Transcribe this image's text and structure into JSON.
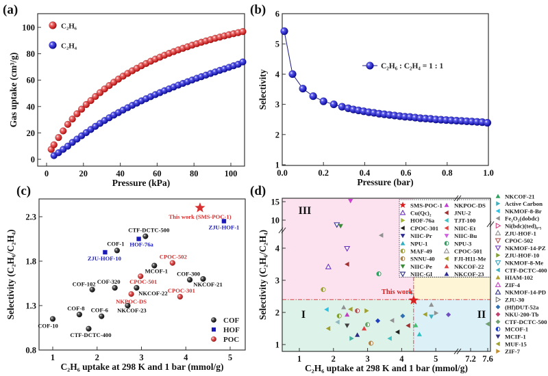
{
  "chart_data": [
    {
      "type": "scatter",
      "panel_label": "(a)",
      "xlabel": "Pressure (kPa)",
      "ylabel": "Gas uptake (cm³/g)",
      "xlim": [
        -5,
        110
      ],
      "ylim": [
        -5,
        108
      ],
      "xticks": [
        0,
        20,
        40,
        60,
        80,
        100
      ],
      "yticks": [
        0,
        20,
        40,
        60,
        80,
        100
      ],
      "legend_position": "top-left",
      "series": [
        {
          "name": "C₂H₆",
          "color": "#e02222",
          "x": [
            2.5,
            4,
            6.5,
            9,
            11.5,
            14,
            16.5,
            19,
            21.5,
            24,
            26.5,
            29,
            31.5,
            34,
            36.5,
            39,
            41.5,
            44,
            46.5,
            49,
            51.5,
            54,
            56.5,
            59,
            61.5,
            64,
            66.5,
            69,
            71.5,
            74,
            76.5,
            79,
            81.5,
            84,
            86.5,
            89,
            91.5,
            94,
            96.5,
            99,
            101.5,
            104,
            106.5
          ],
          "y": [
            7.5,
            11,
            16.5,
            21.5,
            26.5,
            30.5,
            34.5,
            38,
            41.5,
            44.5,
            47.6,
            50.5,
            53.3,
            55.9,
            58.4,
            60.8,
            63,
            65.1,
            67.1,
            69,
            70.9,
            72.6,
            74.3,
            75.9,
            77.4,
            78.9,
            80.3,
            81.6,
            82.9,
            84.1,
            85.3,
            86.5,
            87.6,
            88.7,
            89.7,
            90.7,
            91.7,
            92.6,
            93.5,
            94.4,
            95.2,
            96,
            96.8
          ]
        },
        {
          "name": "C₂H₄",
          "color": "#1a1ab8",
          "x": [
            4,
            6.5,
            9,
            11.5,
            14,
            16.5,
            19,
            21.5,
            24,
            26.5,
            29,
            31.5,
            34,
            36.5,
            39,
            41.5,
            44,
            46.5,
            49,
            51.5,
            54,
            56.5,
            59,
            61.5,
            64,
            66.5,
            69,
            71.5,
            74,
            76.5,
            79,
            81.5,
            84,
            86.5,
            89,
            91.5,
            94,
            96.5,
            99,
            101.5,
            104,
            106.5
          ],
          "y": [
            2.8,
            5,
            7.5,
            10,
            12.8,
            15.3,
            17.8,
            20.2,
            22.6,
            25,
            27.2,
            29.4,
            31.5,
            33.5,
            35.4,
            37.3,
            39.1,
            40.9,
            42.6,
            44.3,
            45.9,
            47.5,
            49,
            50.5,
            52,
            53.4,
            54.8,
            56.2,
            57.5,
            58.8,
            60.1,
            61.4,
            62.6,
            63.8,
            65,
            66.2,
            67.4,
            68.5,
            69.7,
            70.9,
            72,
            73.8
          ]
        }
      ]
    },
    {
      "type": "line",
      "panel_label": "(b)",
      "xlabel": "Pressure (bar)",
      "ylabel": "Selectivity",
      "xlim": [
        0,
        1
      ],
      "ylim": [
        1,
        6
      ],
      "xticks": [
        0.0,
        0.2,
        0.4,
        0.6,
        0.8,
        1.0
      ],
      "xtick_labels": [
        "0.0",
        "0.2",
        "0.4",
        "0.6",
        "0.8",
        "1.0"
      ],
      "yticks": [
        1,
        2,
        3,
        4,
        5,
        6
      ],
      "legend_position": "center-right",
      "series": [
        {
          "name": "C₂H₆ : C₂H₄ = 1 : 1",
          "color": "#1a1ab8",
          "x": [
            0.01,
            0.05,
            0.1,
            0.15,
            0.2,
            0.25,
            0.29,
            0.32,
            0.345,
            0.37,
            0.395,
            0.42,
            0.445,
            0.47,
            0.495,
            0.52,
            0.545,
            0.57,
            0.595,
            0.62,
            0.645,
            0.67,
            0.695,
            0.72,
            0.745,
            0.77,
            0.795,
            0.82,
            0.845,
            0.87,
            0.895,
            0.92,
            0.945,
            0.97,
            0.995
          ],
          "y": [
            5.42,
            4.0,
            3.52,
            3.27,
            3.1,
            3.0,
            2.92,
            2.87,
            2.83,
            2.8,
            2.77,
            2.74,
            2.72,
            2.69,
            2.67,
            2.65,
            2.63,
            2.61,
            2.59,
            2.58,
            2.56,
            2.54,
            2.53,
            2.52,
            2.5,
            2.49,
            2.48,
            2.47,
            2.46,
            2.45,
            2.44,
            2.43,
            2.42,
            2.41,
            2.39
          ]
        }
      ]
    },
    {
      "type": "scatter",
      "panel_label": "(c)",
      "xlabel": "C₂H₆ uptake at 298 K and 1 bar (mmol/g)",
      "ylabel": "Selectivity (C₂H₆/C₂H₄)",
      "xlim": [
        0.7,
        5.35
      ],
      "ylim": [
        0.8,
        2.5
      ],
      "xticks": [
        1,
        2,
        3,
        4,
        5
      ],
      "yticks": [
        0.8,
        1.3,
        1.8,
        2.3
      ],
      "legend_position": "bottom-right",
      "legend": [
        {
          "name": "COF",
          "color": "#111111",
          "marker": "sphere"
        },
        {
          "name": "HOF",
          "color": "#1a1ab8",
          "marker": "square"
        },
        {
          "name": "POC",
          "color": "#d83030",
          "marker": "sphere"
        }
      ],
      "highlight": {
        "label": "This work (SMS-POC-1)",
        "x": 4.32,
        "y": 2.4,
        "color": "#d83030"
      },
      "points": [
        {
          "label": "COF-10",
          "x": 1.0,
          "y": 1.15,
          "group": "COF"
        },
        {
          "label": "CTF-DCTC-400",
          "x": 1.81,
          "y": 1.04,
          "group": "COF"
        },
        {
          "label": "COF-8",
          "x": 1.6,
          "y": 1.2,
          "group": "COF"
        },
        {
          "label": "COF-6",
          "x": 2.1,
          "y": 1.18,
          "group": "COF"
        },
        {
          "label": "COF-102",
          "x": 1.89,
          "y": 1.48,
          "group": "COF"
        },
        {
          "label": "COF-320",
          "x": 2.4,
          "y": 1.5,
          "group": "COF"
        },
        {
          "label": "NKCOF-22",
          "x": 2.89,
          "y": 1.5,
          "group": "COF"
        },
        {
          "label": "NKCOF-23",
          "x": 2.69,
          "y": 1.3,
          "group": "COF"
        },
        {
          "label": "COF-1",
          "x": 2.45,
          "y": 1.92,
          "group": "COF"
        },
        {
          "label": "CTF-DCTC-500",
          "x": 3.09,
          "y": 2.08,
          "group": "COF"
        },
        {
          "label": "MCOF-1",
          "x": 3.29,
          "y": 1.75,
          "group": "COF"
        },
        {
          "label": "COF-300",
          "x": 4.09,
          "y": 1.59,
          "group": "COF"
        },
        {
          "label": "NKCOF-21",
          "x": 4.39,
          "y": 1.6,
          "group": "COF"
        },
        {
          "label": "ZJU-HOF-10",
          "x": 2.18,
          "y": 1.9,
          "group": "HOF"
        },
        {
          "label": "HOF-76a",
          "x": 2.94,
          "y": 2.05,
          "group": "HOF"
        },
        {
          "label": "ZJU-HOF-1",
          "x": 4.86,
          "y": 2.25,
          "group": "HOF"
        },
        {
          "label": "CPOC-502",
          "x": 3.7,
          "y": 1.78,
          "group": "POC"
        },
        {
          "label": "CPOC-501",
          "x": 2.98,
          "y": 1.63,
          "group": "POC"
        },
        {
          "label": "NKPOC-DS",
          "x": 2.77,
          "y": 1.43,
          "group": "POC"
        },
        {
          "label": "CPOC-301",
          "x": 3.87,
          "y": 1.4,
          "group": "POC"
        }
      ]
    },
    {
      "type": "scatter",
      "panel_label": "(d)",
      "xlabel": "C₂H₆ uptake at 298 K and 1 bar (mmol/g)",
      "ylabel": "Selectivity (C₂H₆/C₂H₄)",
      "x_axis_break": [
        5.6,
        7.0
      ],
      "y_axis_break": [
        4.6,
        8.0
      ],
      "xticks": [
        1,
        2,
        3,
        4,
        5,
        7.2,
        7.6
      ],
      "yticks": [
        1,
        2,
        3,
        4,
        10,
        15
      ],
      "regions": [
        {
          "label": "III",
          "color": "#fbe2ee"
        },
        {
          "label": "I",
          "color": "#ddf3ea"
        },
        {
          "label": "II",
          "color": "#dcf0f8"
        },
        {
          "label": "",
          "color": "#fdf5d6"
        }
      ],
      "threshold": {
        "x": 4.35,
        "y": 2.4,
        "upper_y": 3.1,
        "color": "#d84040"
      },
      "highlight": {
        "label": "This work",
        "x": 4.35,
        "y": 2.38,
        "color": "#d82020"
      },
      "points": [
        [
          2.5,
          15.2,
          "▼",
          "#d040d0"
        ],
        [
          2.1,
          8.75,
          "▽",
          "#303090"
        ],
        [
          2.21,
          8.4,
          "▼",
          "#3a8a3a"
        ],
        [
          3.4,
          4.4,
          "◀",
          "#909090"
        ],
        [
          2.4,
          3.99,
          "▽",
          "#6a30c0"
        ],
        [
          1.85,
          3.42,
          "△",
          "#6a30c0"
        ],
        [
          2.4,
          3.5,
          "◀",
          "#a03030"
        ],
        [
          3.33,
          3.2,
          "◐",
          "#30a060"
        ],
        [
          1.7,
          2.71,
          "◐",
          "#a0a030"
        ],
        [
          4.25,
          2.62,
          "◀",
          "#30c0c0"
        ],
        [
          1.8,
          2.09,
          "◀",
          "#30c0e0"
        ],
        [
          2.3,
          2.16,
          "▲",
          "#909090"
        ],
        [
          2.17,
          1.89,
          "◐",
          "#80a030"
        ],
        [
          2.5,
          2.1,
          "◀",
          "#a0a030"
        ],
        [
          2.4,
          1.93,
          "▲",
          "#c040c0"
        ],
        [
          2.7,
          2.05,
          "◐",
          "#b05050"
        ],
        [
          2.97,
          2.05,
          "▶",
          "#a0a030"
        ],
        [
          2.12,
          1.7,
          "◀",
          "#90b8c0"
        ],
        [
          2.4,
          1.59,
          "▼",
          "#404040"
        ],
        [
          1.85,
          1.5,
          "◀",
          "#a0a030"
        ],
        [
          3.0,
          1.62,
          "◐",
          "#60a060"
        ],
        [
          3.3,
          1.74,
          "◆",
          "#2040c0"
        ],
        [
          3.72,
          1.75,
          "◀",
          "#909090"
        ],
        [
          2.9,
          1.5,
          "▲",
          "#e04040"
        ],
        [
          2.7,
          1.3,
          "▲",
          "#2a2a80"
        ],
        [
          2.53,
          1.19,
          "▶",
          "#40b0a0"
        ],
        [
          3.1,
          1.04,
          "◐",
          "#b08040"
        ],
        [
          3.65,
          1.19,
          "◀",
          "#40c0c0"
        ],
        [
          3.88,
          1.39,
          "◀",
          "#202020"
        ],
        [
          4.03,
          1.89,
          "◆",
          "#3070b0"
        ],
        [
          4.19,
          1.59,
          "◀",
          "#a03030"
        ],
        [
          4.41,
          1.6,
          "▲",
          "#40c070"
        ],
        [
          4.52,
          1.32,
          "▲",
          "#30c0c0"
        ],
        [
          4.87,
          2.24,
          "▲",
          "#909090"
        ],
        [
          4.69,
          1.94,
          "◀",
          "#a0a030"
        ],
        [
          4.87,
          1.87,
          "▼",
          "#40b0c0"
        ],
        [
          5.01,
          1.98,
          "▶",
          "#909090"
        ],
        [
          5.37,
          1.93,
          "◆",
          "#7050c0"
        ],
        [
          7.6,
          1.64,
          "◀",
          "#70a070"
        ]
      ],
      "legend_inner": [
        {
          "name": "SMS-POC-1",
          "sym": "★",
          "color": "#d82020"
        },
        {
          "name": "Cu(Qc)₂",
          "sym": "△",
          "color": "#6a30c0"
        },
        {
          "name": "HOF-76a",
          "sym": "▶",
          "color": "#a0b030"
        },
        {
          "name": "CPOC-301",
          "sym": "◀",
          "color": "#202020"
        },
        {
          "name": "NIIC-Pr",
          "sym": "▼",
          "color": "#2a2a90"
        },
        {
          "name": "NPU-1",
          "sym": "▲",
          "color": "#30b0c0"
        },
        {
          "name": "MAF-49",
          "sym": "◐",
          "color": "#a0a030"
        },
        {
          "name": "SNNU-40",
          "sym": "◐",
          "color": "#b08040"
        },
        {
          "name": "NIIC-Pe",
          "sym": "▼",
          "color": "#3a8a3a"
        },
        {
          "name": "NIIC-Gl",
          "sym": "▽",
          "color": "#2a2a80"
        },
        {
          "name": "NKPOC-DS",
          "sym": "▲",
          "color": "#c040d0"
        },
        {
          "name": "JNU-2",
          "sym": "◀",
          "color": "#a03030"
        },
        {
          "name": "TJT-100",
          "sym": "◀",
          "color": "#40c0c0"
        },
        {
          "name": "NIIC-Et",
          "sym": "◀",
          "color": "#e04040"
        },
        {
          "name": "NIIC-Bu",
          "sym": "▼",
          "color": "#d060e0"
        },
        {
          "name": "NPU-3",
          "sym": "◐",
          "color": "#30a060"
        },
        {
          "name": "CPOC-501",
          "sym": "△",
          "color": "#909090"
        },
        {
          "name": "FJI-H11-Me",
          "sym": "◀",
          "color": "#a0a030"
        },
        {
          "name": "NKCOF-22",
          "sym": "▲",
          "color": "#e04040"
        },
        {
          "name": "NKCOF-23",
          "sym": "▲",
          "color": "#2a2a90"
        }
      ],
      "legend_outer": [
        {
          "name": "NKCOF-21",
          "sym": "▲",
          "color": "#30a060"
        },
        {
          "name": "Active Carbon",
          "sym": "▶",
          "color": "#40b0c0"
        },
        {
          "name": "NKMOF-8-Br",
          "sym": "◀",
          "color": "#30c0e0"
        },
        {
          "name": "Fe₂O₂(dobdc)",
          "sym": "◀",
          "color": "#909090"
        },
        {
          "name": "Ni(bdc)(ted)₀.₅",
          "sym": "▷",
          "color": "#d04080"
        },
        {
          "name": "ZJU-HOF-1",
          "sym": "△",
          "color": "#909090"
        },
        {
          "name": "CPOC-502",
          "sym": "▽",
          "color": "#b05050"
        },
        {
          "name": "NKMOF-14-PZ",
          "sym": "▽",
          "color": "#6a30c0"
        },
        {
          "name": "ZJU-HOF-10",
          "sym": "▶",
          "color": "#80a030"
        },
        {
          "name": "NKMOF-8-Me",
          "sym": "▽",
          "color": "#30a0c0"
        },
        {
          "name": "CTF-DCTC-400",
          "sym": "◀",
          "color": "#40b0c0"
        },
        {
          "name": "HIAM-102",
          "sym": "▲",
          "color": "#b0a030"
        },
        {
          "name": "ZIF-4",
          "sym": "△",
          "color": "#c040c0"
        },
        {
          "name": "NKMOF-14-PD",
          "sym": "△",
          "color": "#2a2a80"
        },
        {
          "name": "ZJU-30",
          "sym": "▷",
          "color": "#707070"
        },
        {
          "name": "(Hf)DUT-52a",
          "sym": "◆",
          "color": "#3070b0"
        },
        {
          "name": "NKU-200-Tb",
          "sym": "◆",
          "color": "#c04070"
        },
        {
          "name": "CTF-DCTC-500",
          "sym": "◆",
          "color": "#70a070"
        },
        {
          "name": "MCOF-1",
          "sym": "◐",
          "color": "#2040c0"
        },
        {
          "name": "MCIF-1",
          "sym": "▼",
          "color": "#303080"
        },
        {
          "name": "MUF-15",
          "sym": "◀",
          "color": "#a0a030"
        },
        {
          "name": "ZIF-7",
          "sym": "▶",
          "color": "#c09030"
        }
      ]
    }
  ]
}
